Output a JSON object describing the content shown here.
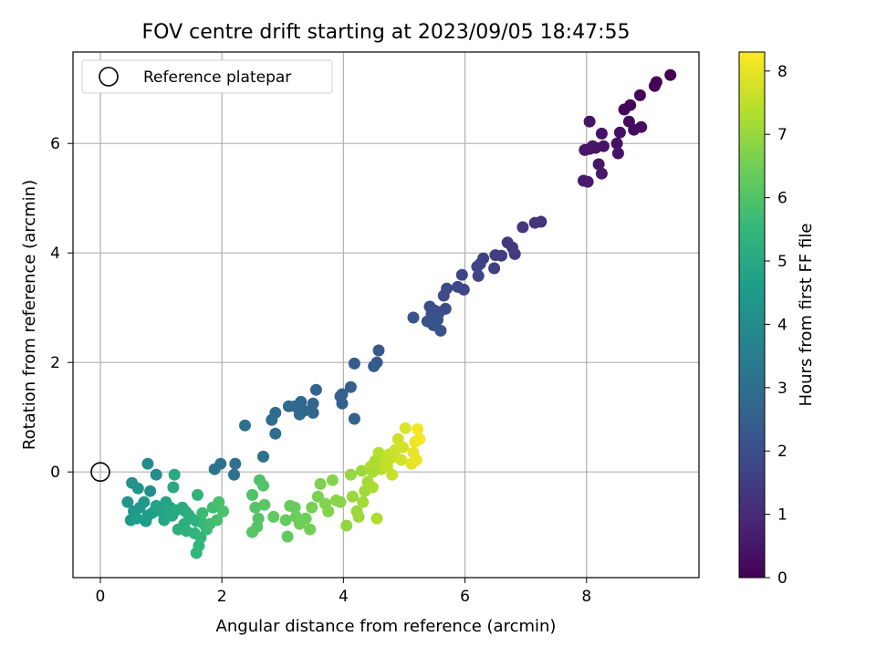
{
  "chart_data": {
    "type": "scatter",
    "title": "FOV centre drift starting at 2023/09/05 18:47:55",
    "xlabel": "Angular distance from reference (arcmin)",
    "ylabel": "Rotation from reference (arcmin)",
    "xlim": [
      -0.45,
      9.85
    ],
    "ylim": [
      -1.93,
      7.67
    ],
    "xticks": [
      "0",
      "2",
      "4",
      "6",
      "8"
    ],
    "yticks": [
      "0",
      "2",
      "4",
      "6"
    ],
    "grid": true,
    "legend": {
      "placement": "top-left",
      "entries": [
        "Reference platepar"
      ]
    },
    "reference_point": {
      "x": 0,
      "y": 0,
      "label": "Reference platepar"
    },
    "colorbar": {
      "label": "Hours from first FF file",
      "range": [
        0,
        8.3
      ],
      "ticks": [
        "0",
        "1",
        "2",
        "3",
        "4",
        "5",
        "6",
        "7",
        "8"
      ],
      "colormap": [
        "#440154",
        "#482878",
        "#3e4989",
        "#31688e",
        "#26828e",
        "#1f9e89",
        "#35b779",
        "#6ece58",
        "#b5de2b",
        "#fde725"
      ]
    },
    "points_xyh": [
      [
        9.38,
        7.25,
        0.02
      ],
      [
        9.15,
        7.12,
        0.05
      ],
      [
        9.12,
        7.05,
        0.08
      ],
      [
        8.88,
        6.88,
        0.12
      ],
      [
        8.72,
        6.7,
        0.15
      ],
      [
        8.62,
        6.62,
        0.2
      ],
      [
        8.7,
        6.4,
        0.25
      ],
      [
        8.9,
        6.3,
        0.3
      ],
      [
        8.78,
        6.25,
        0.28
      ],
      [
        8.55,
        6.2,
        0.35
      ],
      [
        8.5,
        6.0,
        0.38
      ],
      [
        8.52,
        5.82,
        0.4
      ],
      [
        8.25,
        6.18,
        0.42
      ],
      [
        8.28,
        5.95,
        0.45
      ],
      [
        8.05,
        6.4,
        0.45
      ],
      [
        8.15,
        5.92,
        0.48
      ],
      [
        8.05,
        5.9,
        0.5
      ],
      [
        7.97,
        5.88,
        0.52
      ],
      [
        8.2,
        5.62,
        0.55
      ],
      [
        8.25,
        5.45,
        0.58
      ],
      [
        7.95,
        5.32,
        0.6
      ],
      [
        8.02,
        5.3,
        0.62
      ],
      [
        8.1,
        5.95,
        0.5
      ],
      [
        7.25,
        4.57,
        1.2
      ],
      [
        7.15,
        4.55,
        1.25
      ],
      [
        6.95,
        4.47,
        1.3
      ],
      [
        6.78,
        4.1,
        1.35
      ],
      [
        6.7,
        4.19,
        1.4
      ],
      [
        6.82,
        3.98,
        1.45
      ],
      [
        6.6,
        3.95,
        1.5
      ],
      [
        6.5,
        3.96,
        1.52
      ],
      [
        6.48,
        3.72,
        1.55
      ],
      [
        6.3,
        3.9,
        1.6
      ],
      [
        6.25,
        3.8,
        1.65
      ],
      [
        6.2,
        3.75,
        1.7
      ],
      [
        6.22,
        3.58,
        1.72
      ],
      [
        5.95,
        3.6,
        1.75
      ],
      [
        5.98,
        3.33,
        1.8
      ],
      [
        5.88,
        3.38,
        1.85
      ],
      [
        5.7,
        3.35,
        1.85
      ],
      [
        5.65,
        3.22,
        1.9
      ],
      [
        5.68,
        2.98,
        1.95
      ],
      [
        5.58,
        2.92,
        2.0
      ],
      [
        5.42,
        3.02,
        2.0
      ],
      [
        5.5,
        2.95,
        2.05
      ],
      [
        5.45,
        2.88,
        2.05
      ],
      [
        5.38,
        2.75,
        2.1
      ],
      [
        5.48,
        2.68,
        2.1
      ],
      [
        5.6,
        2.58,
        2.15
      ],
      [
        5.55,
        2.78,
        2.1
      ],
      [
        5.15,
        2.82,
        2.2
      ],
      [
        4.58,
        2.22,
        2.3
      ],
      [
        4.55,
        2.0,
        2.35
      ],
      [
        4.5,
        1.93,
        2.4
      ],
      [
        4.18,
        1.98,
        2.4
      ],
      [
        4.12,
        1.55,
        2.45
      ],
      [
        3.98,
        1.42,
        2.5
      ],
      [
        3.95,
        1.38,
        2.55
      ],
      [
        3.98,
        1.25,
        2.55
      ],
      [
        4.18,
        0.97,
        2.6
      ],
      [
        3.55,
        1.5,
        2.65
      ],
      [
        3.5,
        1.25,
        2.7
      ],
      [
        3.5,
        1.08,
        2.75
      ],
      [
        3.3,
        1.28,
        2.75
      ],
      [
        3.35,
        1.12,
        2.8
      ],
      [
        3.28,
        1.05,
        2.8
      ],
      [
        3.1,
        1.2,
        2.85
      ],
      [
        3.2,
        1.2,
        2.85
      ],
      [
        2.88,
        1.08,
        2.9
      ],
      [
        2.82,
        0.95,
        2.9
      ],
      [
        2.88,
        0.7,
        2.95
      ],
      [
        2.38,
        0.85,
        3.0
      ],
      [
        2.68,
        0.28,
        3.05
      ],
      [
        2.22,
        0.15,
        3.05
      ],
      [
        2.2,
        -0.05,
        3.1
      ],
      [
        1.98,
        0.15,
        3.15
      ],
      [
        1.88,
        0.05,
        3.2
      ],
      [
        0.78,
        0.15,
        4.0
      ],
      [
        0.92,
        -0.05,
        4.1
      ],
      [
        0.82,
        -0.35,
        4.15
      ],
      [
        0.52,
        -0.2,
        4.2
      ],
      [
        0.62,
        -0.3,
        4.25
      ],
      [
        0.45,
        -0.55,
        4.3
      ],
      [
        0.55,
        -0.72,
        4.35
      ],
      [
        0.65,
        -0.65,
        4.4
      ],
      [
        0.72,
        -0.55,
        4.45
      ],
      [
        0.78,
        -0.8,
        4.5
      ],
      [
        0.5,
        -0.88,
        4.55
      ],
      [
        0.6,
        -0.85,
        4.6
      ],
      [
        0.75,
        -0.9,
        4.65
      ],
      [
        0.85,
        -0.75,
        4.7
      ],
      [
        0.92,
        -0.62,
        4.75
      ],
      [
        1.0,
        -0.72,
        4.8
      ],
      [
        1.08,
        -0.55,
        4.85
      ],
      [
        1.15,
        -0.65,
        4.9
      ],
      [
        1.05,
        -0.88,
        4.9
      ],
      [
        1.18,
        -0.8,
        4.95
      ],
      [
        1.25,
        -0.7,
        5.0
      ],
      [
        1.22,
        -0.05,
        5.0
      ],
      [
        1.2,
        -0.28,
        5.0
      ],
      [
        1.35,
        -0.65,
        5.05
      ],
      [
        1.4,
        -0.72,
        5.1
      ],
      [
        1.45,
        -0.78,
        5.15
      ],
      [
        1.5,
        -0.85,
        5.2
      ],
      [
        1.38,
        -0.95,
        5.2
      ],
      [
        1.28,
        -1.05,
        5.25
      ],
      [
        1.42,
        -1.08,
        5.3
      ],
      [
        1.58,
        -0.9,
        5.3
      ],
      [
        1.6,
        -0.42,
        5.35
      ],
      [
        1.55,
        -1.12,
        5.4
      ],
      [
        1.65,
        -1.2,
        5.45
      ],
      [
        1.58,
        -1.48,
        5.5
      ],
      [
        1.62,
        -1.35,
        5.5
      ],
      [
        1.7,
        -0.95,
        5.55
      ],
      [
        1.75,
        -1.05,
        5.6
      ],
      [
        1.68,
        -0.75,
        5.65
      ],
      [
        1.8,
        -0.95,
        5.7
      ],
      [
        1.85,
        -0.65,
        5.75
      ],
      [
        1.92,
        -0.88,
        5.8
      ],
      [
        1.95,
        -0.55,
        5.85
      ],
      [
        2.02,
        -0.72,
        5.9
      ],
      [
        2.62,
        -0.15,
        5.95
      ],
      [
        2.68,
        -0.25,
        6.0
      ],
      [
        2.5,
        -0.42,
        6.0
      ],
      [
        2.55,
        -0.65,
        6.05
      ],
      [
        2.6,
        -0.85,
        6.05
      ],
      [
        2.5,
        -1.1,
        6.1
      ],
      [
        2.58,
        -1.0,
        6.1
      ],
      [
        2.7,
        -0.6,
        6.15
      ],
      [
        2.85,
        -0.82,
        6.2
      ],
      [
        3.08,
        -1.18,
        6.25
      ],
      [
        3.05,
        -0.88,
        6.3
      ],
      [
        3.12,
        -0.62,
        6.35
      ],
      [
        3.2,
        -0.65,
        6.35
      ],
      [
        3.22,
        -0.82,
        6.4
      ],
      [
        3.28,
        -0.95,
        6.45
      ],
      [
        3.38,
        -0.85,
        6.45
      ],
      [
        3.45,
        -1.05,
        6.5
      ],
      [
        3.48,
        -0.65,
        6.55
      ],
      [
        3.58,
        -0.45,
        6.6
      ],
      [
        3.62,
        -0.22,
        6.65
      ],
      [
        3.7,
        -0.58,
        6.7
      ],
      [
        3.75,
        -0.72,
        6.7
      ],
      [
        3.82,
        -0.15,
        6.75
      ],
      [
        3.88,
        -0.52,
        6.8
      ],
      [
        3.95,
        -0.55,
        6.8
      ],
      [
        4.05,
        -0.98,
        6.9
      ],
      [
        4.12,
        -0.05,
        6.95
      ],
      [
        4.15,
        -0.45,
        7.0
      ],
      [
        4.22,
        -0.72,
        7.0
      ],
      [
        4.25,
        -0.82,
        7.05
      ],
      [
        4.3,
        0.02,
        7.05
      ],
      [
        4.35,
        -0.35,
        7.1
      ],
      [
        4.32,
        -0.55,
        7.15
      ],
      [
        4.4,
        -0.18,
        7.2
      ],
      [
        4.45,
        0.1,
        7.25
      ],
      [
        4.48,
        -0.28,
        7.25
      ],
      [
        4.55,
        -0.85,
        7.3
      ],
      [
        4.58,
        0.35,
        7.35
      ],
      [
        4.62,
        0.05,
        7.4
      ],
      [
        4.68,
        0.2,
        7.45
      ],
      [
        4.72,
        0.1,
        7.5
      ],
      [
        4.75,
        0.32,
        7.55
      ],
      [
        4.8,
        -0.05,
        7.6
      ],
      [
        4.85,
        0.4,
        7.65
      ],
      [
        4.9,
        0.6,
        7.7
      ],
      [
        4.95,
        0.22,
        7.75
      ],
      [
        4.98,
        0.45,
        7.8
      ],
      [
        5.02,
        0.8,
        7.85
      ],
      [
        5.12,
        0.15,
        7.95
      ],
      [
        5.15,
        0.35,
        8.0
      ],
      [
        5.2,
        0.22,
        8.05
      ],
      [
        5.18,
        0.55,
        8.1
      ],
      [
        5.22,
        0.78,
        8.15
      ],
      [
        5.25,
        0.6,
        8.2
      ],
      [
        4.48,
        0.0,
        7.2
      ],
      [
        4.52,
        0.2,
        7.3
      ],
      [
        4.78,
        0.25,
        7.6
      ]
    ]
  }
}
